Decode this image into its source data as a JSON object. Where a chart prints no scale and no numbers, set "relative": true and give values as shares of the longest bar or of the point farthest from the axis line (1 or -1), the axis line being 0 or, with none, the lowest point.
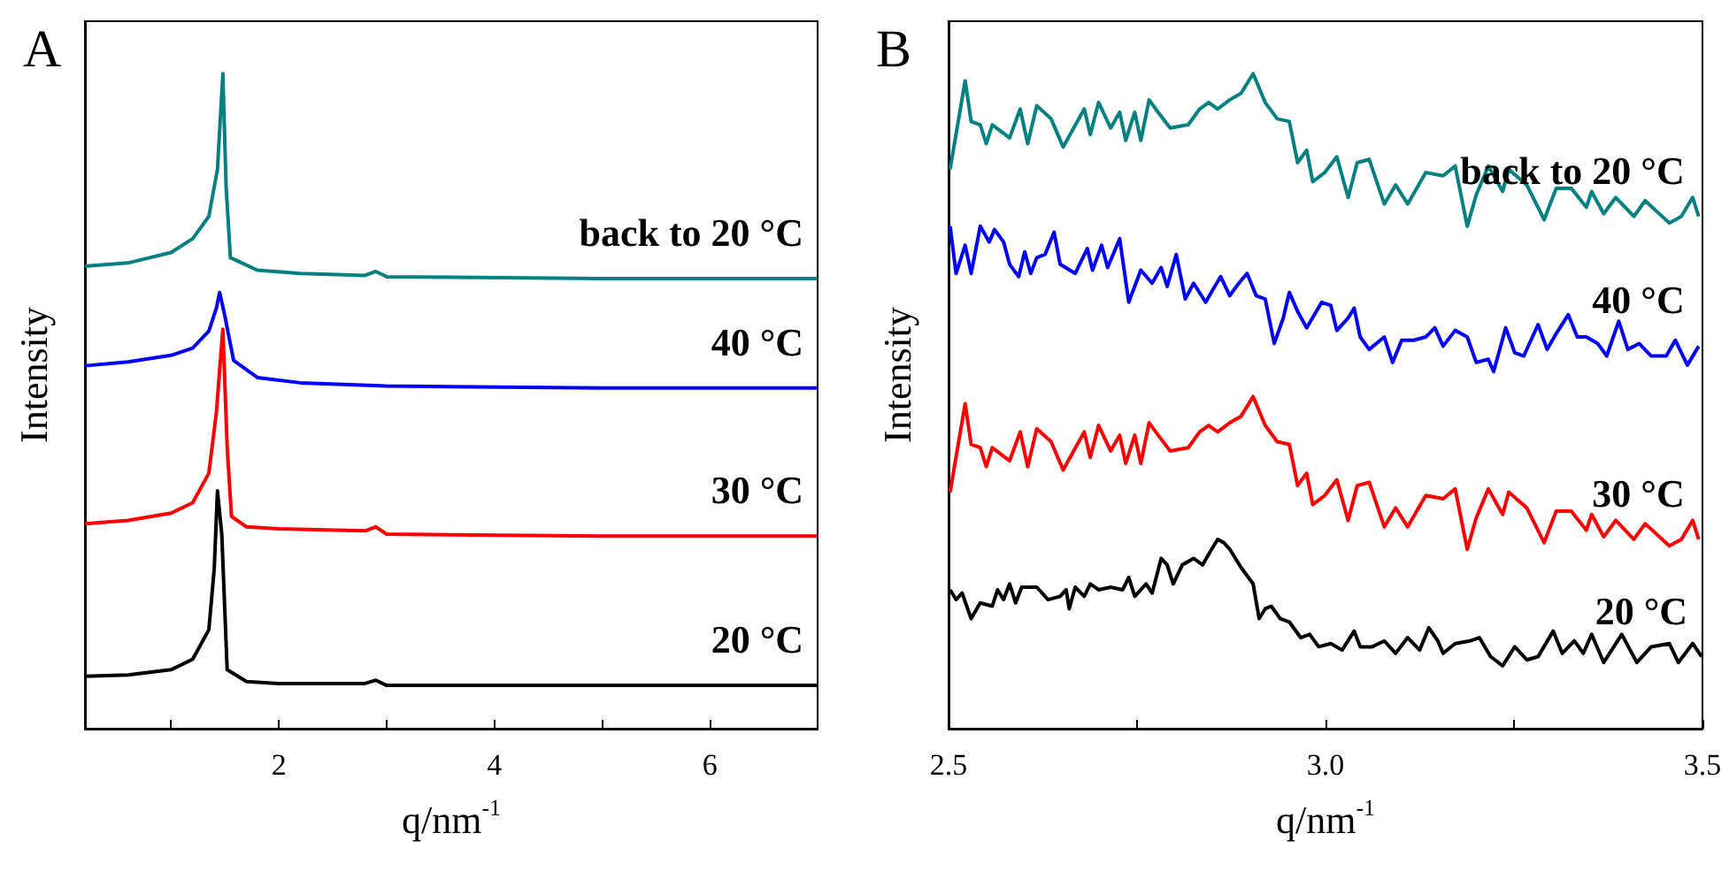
{
  "chart_data": [
    {
      "type": "line",
      "title": "A",
      "xlabel": "q/nm$^{-1}$",
      "ylabel": "Intensity",
      "relative": true,
      "xlim": [
        0.2,
        7
      ],
      "xticks": [
        {
          "value": 1,
          "label": null
        },
        2,
        {
          "value": 3,
          "label": null
        },
        4,
        {
          "value": 5,
          "label": null
        },
        6
      ],
      "series": [
        {
          "name": "20 °C",
          "color": "#000000",
          "x": [
            0.2,
            0.6,
            1.0,
            1.2,
            1.35,
            1.4,
            1.43,
            1.47,
            1.52,
            1.7,
            2.0,
            2.8,
            2.9,
            3.0,
            5,
            7
          ],
          "values": [
            0.08,
            0.082,
            0.09,
            0.106,
            0.151,
            0.244,
            0.363,
            0.297,
            0.09,
            0.072,
            0.069,
            0.069,
            0.074,
            0.066,
            0.066,
            0.066
          ]
        },
        {
          "name": "30 °C",
          "color": "#ff0000",
          "x": [
            0.2,
            0.6,
            1.0,
            1.2,
            1.35,
            1.42,
            1.48,
            1.52,
            1.56,
            1.7,
            2.0,
            2.8,
            2.9,
            3.0,
            5,
            7
          ],
          "values": [
            0.313,
            0.318,
            0.329,
            0.345,
            0.39,
            0.483,
            0.61,
            0.43,
            0.324,
            0.308,
            0.305,
            0.302,
            0.308,
            0.297,
            0.294,
            0.294
          ]
        },
        {
          "name": "40 °C",
          "color": "#0000ff",
          "x": [
            0.2,
            0.6,
            1.0,
            1.2,
            1.35,
            1.42,
            1.45,
            1.5,
            1.58,
            1.8,
            2.2,
            3.0,
            5,
            7
          ],
          "values": [
            0.554,
            0.56,
            0.57,
            0.581,
            0.607,
            0.642,
            0.666,
            0.629,
            0.562,
            0.536,
            0.528,
            0.523,
            0.52,
            0.52
          ]
        },
        {
          "name": "back to 20 °C",
          "color": "#008080",
          "x": [
            0.2,
            0.6,
            1.0,
            1.2,
            1.35,
            1.43,
            1.48,
            1.51,
            1.55,
            1.8,
            2.2,
            2.8,
            2.9,
            3.0,
            5,
            7
          ],
          "values": [
            0.706,
            0.711,
            0.727,
            0.748,
            0.782,
            0.854,
            1,
            0.828,
            0.719,
            0.7,
            0.695,
            0.692,
            0.698,
            0.69,
            0.687,
            0.687
          ]
        }
      ]
    },
    {
      "type": "line",
      "title": "B",
      "xlabel": "q/nm$^{-1}$",
      "ylabel": "Intensity",
      "relative": true,
      "xlim": [
        2.5,
        3.5
      ],
      "xticks": [
        2.5,
        {
          "value": 2.75,
          "label": null
        },
        {
          "value": 3,
          "label": "3.0"
        },
        {
          "value": 3.25,
          "label": null
        },
        3.5
      ],
      "series": [
        {
          "name": "20 °C",
          "color": "#000000",
          "x": [
            2.502,
            2.51,
            2.518,
            2.53,
            2.542,
            2.558,
            2.565,
            2.573,
            2.581,
            2.589,
            2.597,
            2.617,
            2.632,
            2.648,
            2.656,
            2.66,
            2.668,
            2.68,
            2.688,
            2.699,
            2.715,
            2.731,
            2.739,
            2.747,
            2.762,
            2.77,
            2.782,
            2.79,
            2.798,
            2.81,
            2.825,
            2.837,
            2.849,
            2.857,
            2.865,
            2.873,
            2.888,
            2.904,
            2.912,
            2.92,
            2.928,
            2.94,
            2.952,
            2.967,
            2.979,
            2.991,
            3.007,
            3.022,
            3.038,
            3.046,
            3.062,
            3.078,
            3.093,
            3.109,
            3.125,
            3.137,
            3.149,
            3.156,
            3.172,
            3.192,
            3.204,
            3.219,
            3.235,
            3.251,
            3.267,
            3.282,
            3.302,
            3.314,
            3.33,
            3.342,
            3.353,
            3.369,
            3.393,
            3.413,
            3.432,
            3.456,
            3.468,
            3.487,
            3.499
          ],
          "values": [
            0.212,
            0.197,
            0.207,
            0.168,
            0.192,
            0.187,
            0.212,
            0.197,
            0.221,
            0.192,
            0.216,
            0.216,
            0.197,
            0.202,
            0.212,
            0.183,
            0.216,
            0.202,
            0.221,
            0.212,
            0.216,
            0.212,
            0.231,
            0.202,
            0.221,
            0.207,
            0.26,
            0.25,
            0.221,
            0.25,
            0.26,
            0.25,
            0.274,
            0.289,
            0.284,
            0.274,
            0.246,
            0.221,
            0.168,
            0.183,
            0.187,
            0.168,
            0.163,
            0.139,
            0.144,
            0.125,
            0.13,
            0.12,
            0.149,
            0.125,
            0.125,
            0.134,
            0.115,
            0.139,
            0.12,
            0.154,
            0.134,
            0.115,
            0.13,
            0.134,
            0.139,
            0.11,
            0.096,
            0.125,
            0.105,
            0.11,
            0.149,
            0.115,
            0.134,
            0.115,
            0.144,
            0.101,
            0.144,
            0.101,
            0.125,
            0.13,
            0.101,
            0.13,
            0.11
          ]
        },
        {
          "name": "30 °C",
          "color": "#ff0000",
          "x": [
            2.502,
            2.522,
            2.53,
            2.542,
            2.55,
            2.558,
            2.581,
            2.595,
            2.605,
            2.617,
            2.636,
            2.652,
            2.68,
            2.688,
            2.699,
            2.715,
            2.727,
            2.735,
            2.747,
            2.755,
            2.766,
            2.778,
            2.794,
            2.818,
            2.833,
            2.845,
            2.857,
            2.873,
            2.888,
            2.904,
            2.92,
            2.936,
            2.952,
            2.963,
            2.975,
            2.983,
            2.999,
            3.015,
            3.03,
            3.042,
            3.058,
            3.078,
            3.093,
            3.109,
            3.133,
            3.156,
            3.172,
            3.188,
            3.2,
            3.216,
            3.235,
            3.243,
            3.267,
            3.29,
            3.306,
            3.326,
            3.346,
            3.353,
            3.369,
            3.385,
            3.409,
            3.424,
            3.456,
            3.472,
            3.487,
            3.495
          ],
          "values": [
            0.361,
            0.496,
            0.434,
            0.429,
            0.4,
            0.429,
            0.409,
            0.453,
            0.4,
            0.458,
            0.438,
            0.395,
            0.453,
            0.414,
            0.463,
            0.424,
            0.448,
            0.405,
            0.448,
            0.405,
            0.467,
            0.448,
            0.424,
            0.429,
            0.453,
            0.463,
            0.453,
            0.467,
            0.477,
            0.507,
            0.463,
            0.438,
            0.434,
            0.371,
            0.39,
            0.342,
            0.356,
            0.38,
            0.318,
            0.371,
            0.376,
            0.308,
            0.337,
            0.308,
            0.356,
            0.351,
            0.366,
            0.274,
            0.322,
            0.366,
            0.327,
            0.361,
            0.337,
            0.284,
            0.332,
            0.332,
            0.303,
            0.327,
            0.293,
            0.318,
            0.289,
            0.313,
            0.279,
            0.289,
            0.318,
            0.289
          ]
        },
        {
          "name": "40 °C",
          "color": "#0000ff",
          "x": [
            2.502,
            2.51,
            2.522,
            2.53,
            2.542,
            2.554,
            2.561,
            2.573,
            2.581,
            2.593,
            2.601,
            2.609,
            2.617,
            2.628,
            2.64,
            2.648,
            2.668,
            2.684,
            2.691,
            2.703,
            2.711,
            2.727,
            2.739,
            2.755,
            2.77,
            2.782,
            2.79,
            2.802,
            2.814,
            2.825,
            2.841,
            2.853,
            2.861,
            2.873,
            2.885,
            2.896,
            2.908,
            2.92,
            2.932,
            2.944,
            2.952,
            2.963,
            2.975,
            2.995,
            3.007,
            3.015,
            3.03,
            3.038,
            3.046,
            3.058,
            3.078,
            3.089,
            3.101,
            3.117,
            3.133,
            3.145,
            3.156,
            3.172,
            3.188,
            3.2,
            3.216,
            3.223,
            3.239,
            3.251,
            3.263,
            3.282,
            3.294,
            3.306,
            3.322,
            3.334,
            3.346,
            3.361,
            3.373,
            3.389,
            3.401,
            3.416,
            3.432,
            3.452,
            3.464,
            3.48,
            3.495
          ],
          "values": [
            0.767,
            0.695,
            0.738,
            0.695,
            0.767,
            0.743,
            0.762,
            0.743,
            0.709,
            0.69,
            0.728,
            0.695,
            0.719,
            0.724,
            0.758,
            0.709,
            0.695,
            0.733,
            0.7,
            0.738,
            0.704,
            0.748,
            0.651,
            0.7,
            0.68,
            0.704,
            0.675,
            0.724,
            0.656,
            0.68,
            0.651,
            0.675,
            0.69,
            0.661,
            0.68,
            0.695,
            0.661,
            0.656,
            0.588,
            0.627,
            0.666,
            0.637,
            0.612,
            0.651,
            0.646,
            0.608,
            0.627,
            0.642,
            0.598,
            0.579,
            0.598,
            0.559,
            0.593,
            0.593,
            0.598,
            0.612,
            0.584,
            0.608,
            0.598,
            0.559,
            0.564,
            0.545,
            0.612,
            0.574,
            0.569,
            0.617,
            0.579,
            0.603,
            0.632,
            0.598,
            0.598,
            0.588,
            0.569,
            0.622,
            0.579,
            0.588,
            0.569,
            0.569,
            0.593,
            0.555,
            0.584
          ]
        },
        {
          "name": "back to 20 °C",
          "color": "#008080",
          "x": [
            2.502,
            2.522,
            2.53,
            2.542,
            2.55,
            2.558,
            2.581,
            2.595,
            2.605,
            2.617,
            2.636,
            2.652,
            2.68,
            2.688,
            2.699,
            2.715,
            2.727,
            2.735,
            2.747,
            2.755,
            2.766,
            2.778,
            2.794,
            2.818,
            2.833,
            2.845,
            2.857,
            2.873,
            2.888,
            2.904,
            2.92,
            2.936,
            2.952,
            2.963,
            2.975,
            2.983,
            2.999,
            3.015,
            3.03,
            3.042,
            3.058,
            3.078,
            3.093,
            3.109,
            3.133,
            3.156,
            3.172,
            3.188,
            3.2,
            3.216,
            3.235,
            3.243,
            3.267,
            3.29,
            3.306,
            3.326,
            3.346,
            3.353,
            3.369,
            3.385,
            3.409,
            3.424,
            3.456,
            3.472,
            3.487,
            3.495
          ],
          "values": [
            0.854,
            0.989,
            0.927,
            0.922,
            0.893,
            0.922,
            0.902,
            0.946,
            0.893,
            0.951,
            0.931,
            0.888,
            0.946,
            0.907,
            0.956,
            0.917,
            0.941,
            0.898,
            0.941,
            0.898,
            0.96,
            0.941,
            0.917,
            0.922,
            0.946,
            0.956,
            0.946,
            0.96,
            0.97,
            1,
            0.956,
            0.931,
            0.927,
            0.864,
            0.883,
            0.835,
            0.849,
            0.873,
            0.811,
            0.864,
            0.869,
            0.801,
            0.83,
            0.801,
            0.849,
            0.844,
            0.859,
            0.767,
            0.815,
            0.859,
            0.82,
            0.854,
            0.83,
            0.777,
            0.825,
            0.825,
            0.796,
            0.82,
            0.786,
            0.811,
            0.782,
            0.806,
            0.772,
            0.782,
            0.811,
            0.782
          ]
        }
      ]
    }
  ]
}
